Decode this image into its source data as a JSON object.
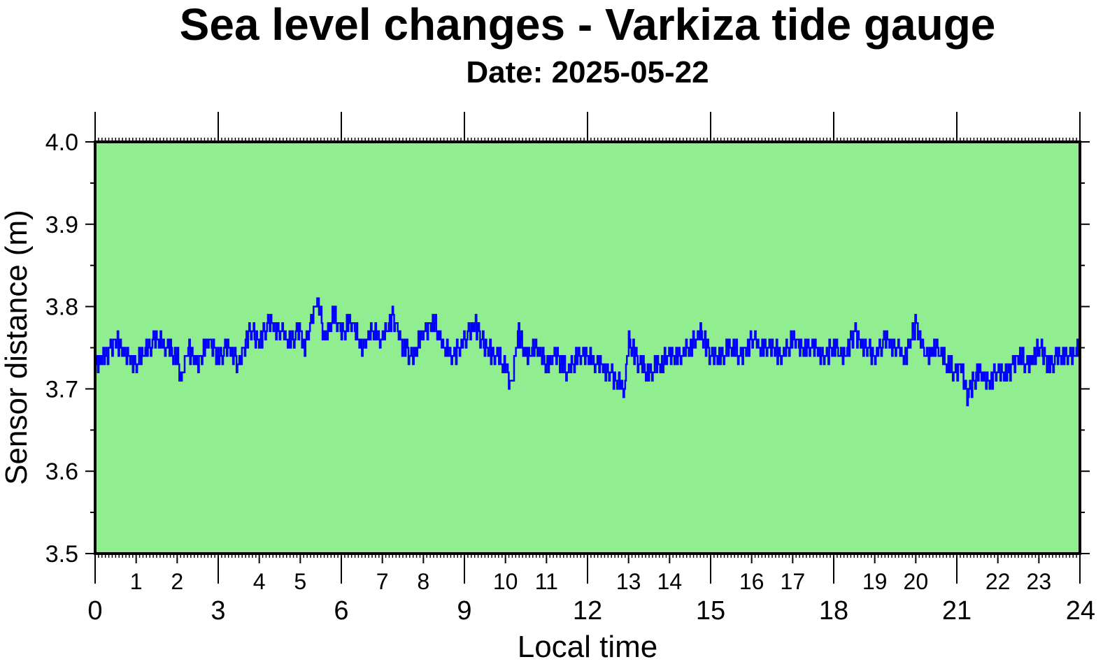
{
  "chart_data": {
    "type": "line",
    "title": "Sea level changes - Varkiza tide gauge",
    "subtitle": "Date: 2025-05-22",
    "xlabel": "Local time",
    "ylabel": "Sensor distance (m)",
    "xlim": [
      0,
      24
    ],
    "ylim": [
      3.5,
      4.0
    ],
    "x_major_ticks": [
      0,
      3,
      6,
      9,
      12,
      15,
      18,
      21,
      24
    ],
    "x_major_tick_labels": [
      "0",
      "3",
      "6",
      "9",
      "12",
      "15",
      "18",
      "21",
      "24"
    ],
    "x_minor_ticks": [
      1,
      2,
      4,
      5,
      7,
      8,
      10,
      11,
      13,
      14,
      16,
      17,
      19,
      20,
      22,
      23
    ],
    "x_minor_tick_labels": [
      "1",
      "2",
      "4",
      "5",
      "7",
      "8",
      "10",
      "11",
      "13",
      "14",
      "16",
      "17",
      "19",
      "20",
      "22",
      "23"
    ],
    "y_ticks": [
      3.5,
      3.6,
      3.7,
      3.8,
      3.9,
      4.0
    ],
    "y_tick_labels": [
      "3.5",
      "3.6",
      "3.7",
      "3.8",
      "3.9",
      "4.0"
    ],
    "grid": false,
    "colors": {
      "plot_background": "#90EE90",
      "series": "#0000FF",
      "frame": "#000000"
    },
    "series": [
      {
        "x": [
          0.0,
          0.25,
          0.5,
          0.75,
          1.0,
          1.25,
          1.5,
          1.75,
          2.0,
          2.1,
          2.25,
          2.5,
          2.75,
          3.0,
          3.25,
          3.5,
          3.75,
          4.0,
          4.25,
          4.5,
          4.75,
          5.0,
          5.1,
          5.25,
          5.4,
          5.6,
          5.8,
          6.0,
          6.25,
          6.5,
          6.75,
          7.0,
          7.25,
          7.5,
          7.75,
          8.0,
          8.25,
          8.5,
          8.75,
          9.0,
          9.25,
          9.5,
          9.75,
          10.0,
          10.15,
          10.3,
          10.5,
          10.75,
          11.0,
          11.25,
          11.5,
          11.75,
          12.0,
          12.25,
          12.5,
          12.75,
          12.9,
          13.0,
          13.25,
          13.5,
          13.75,
          14.0,
          14.25,
          14.5,
          14.75,
          15.0,
          15.25,
          15.5,
          15.75,
          16.0,
          16.25,
          16.5,
          16.75,
          17.0,
          17.25,
          17.5,
          17.75,
          18.0,
          18.25,
          18.5,
          18.75,
          19.0,
          19.25,
          19.5,
          19.75,
          20.0,
          20.25,
          20.5,
          20.75,
          21.0,
          21.1,
          21.25,
          21.5,
          21.75,
          22.0,
          22.25,
          22.5,
          22.75,
          23.0,
          23.25,
          23.5,
          23.75,
          24.0
        ],
        "values": [
          3.73,
          3.74,
          3.76,
          3.74,
          3.73,
          3.75,
          3.76,
          3.75,
          3.74,
          3.71,
          3.75,
          3.73,
          3.76,
          3.74,
          3.75,
          3.73,
          3.77,
          3.76,
          3.78,
          3.77,
          3.76,
          3.77,
          3.75,
          3.78,
          3.81,
          3.76,
          3.79,
          3.77,
          3.78,
          3.75,
          3.77,
          3.76,
          3.79,
          3.75,
          3.74,
          3.77,
          3.78,
          3.75,
          3.74,
          3.76,
          3.78,
          3.75,
          3.74,
          3.73,
          3.7,
          3.77,
          3.74,
          3.75,
          3.73,
          3.74,
          3.72,
          3.74,
          3.74,
          3.73,
          3.72,
          3.71,
          3.7,
          3.76,
          3.73,
          3.72,
          3.73,
          3.74,
          3.74,
          3.75,
          3.77,
          3.74,
          3.74,
          3.75,
          3.74,
          3.76,
          3.75,
          3.75,
          3.74,
          3.76,
          3.75,
          3.75,
          3.74,
          3.75,
          3.74,
          3.77,
          3.75,
          3.74,
          3.76,
          3.75,
          3.74,
          3.78,
          3.74,
          3.75,
          3.73,
          3.72,
          3.73,
          3.69,
          3.72,
          3.71,
          3.72,
          3.72,
          3.74,
          3.73,
          3.75,
          3.73,
          3.74,
          3.74,
          3.75
        ]
      }
    ]
  }
}
